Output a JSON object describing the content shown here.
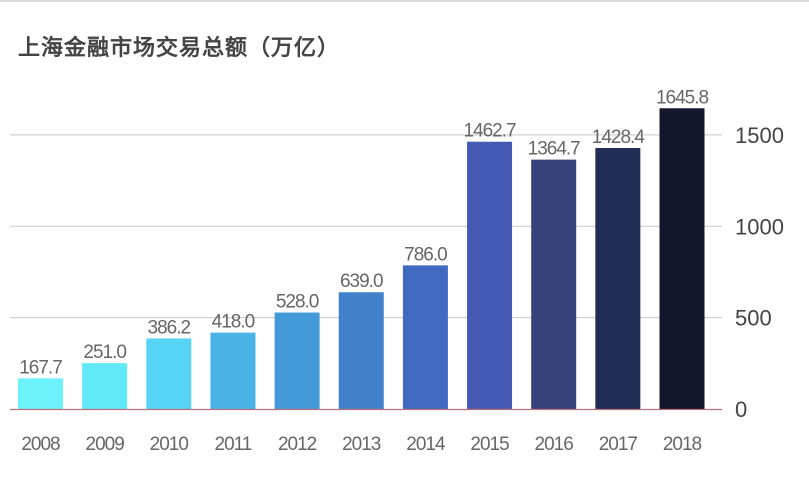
{
  "chart_data": {
    "type": "bar",
    "title": "上海金融市场交易总额（万亿）",
    "xlabel": "",
    "ylabel": "",
    "categories": [
      "2008",
      "2009",
      "2010",
      "2011",
      "2012",
      "2013",
      "2014",
      "2015",
      "2016",
      "2017",
      "2018"
    ],
    "values": [
      167.7,
      251.0,
      386.2,
      418.0,
      528.0,
      639.0,
      786.0,
      1462.7,
      1364.7,
      1428.4,
      1645.8
    ],
    "value_labels": [
      "167.7",
      "251.0",
      "386.2",
      "418.0",
      "528.0",
      "639.0",
      "786.0",
      "1462.7",
      "1364.7",
      "1428.4",
      "1645.8"
    ],
    "bar_colors": [
      "#6cf2fb",
      "#62e9f8",
      "#57d4f4",
      "#4ab3e6",
      "#4499d9",
      "#4182cb",
      "#406ac0",
      "#4459b2",
      "#36417a",
      "#222d56",
      "#14162c"
    ],
    "ylim": [
      0,
      1700
    ],
    "yticks": [
      0,
      500,
      1000,
      1500
    ],
    "ytick_labels": [
      "0",
      "500",
      "1000",
      "1500"
    ],
    "y_axis_side": "right",
    "grid": true,
    "legend": "none"
  }
}
